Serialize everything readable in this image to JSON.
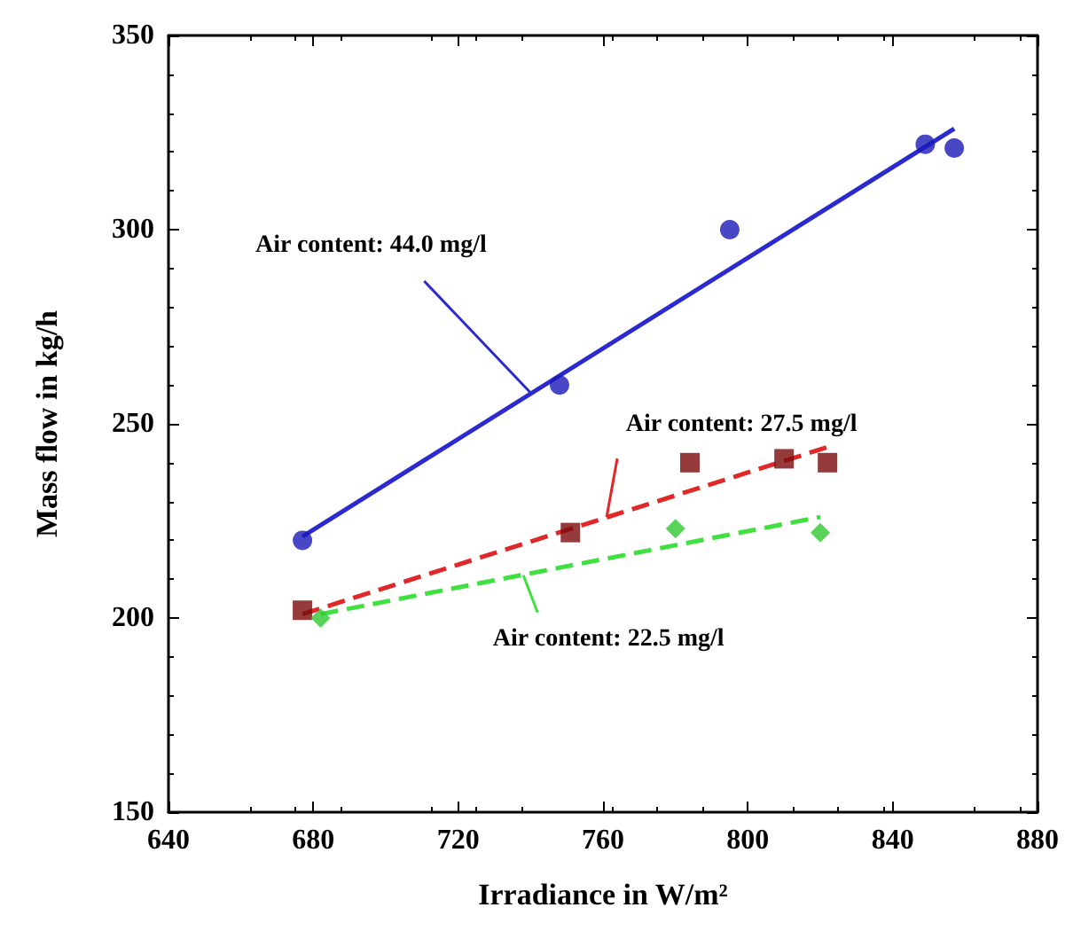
{
  "chart_data": {
    "type": "scatter",
    "xlabel": "Irradiance in W/m²",
    "ylabel": "Mass flow in kg/h",
    "xlim": [
      640,
      880
    ],
    "xticks": [
      640,
      680,
      720,
      760,
      800,
      840,
      880
    ],
    "ylim": [
      150,
      350
    ],
    "yticks": [
      150,
      200,
      250,
      300,
      350
    ],
    "grid": false,
    "series": [
      {
        "color": "#1a1ab8",
        "marker": "circle",
        "x": [
          677,
          748,
          795,
          849,
          857
        ],
        "values": [
          220,
          260,
          300,
          322,
          321
        ]
      },
      {
        "color": "#7a0a0a",
        "marker": "square",
        "x": [
          677,
          751,
          784,
          810,
          822
        ],
        "values": [
          202,
          222,
          240,
          241,
          240
        ]
      },
      {
        "color": "#30c830",
        "marker": "diamond",
        "x": [
          682,
          780,
          820
        ],
        "values": [
          200,
          223,
          222
        ]
      },
      {
        "type": "line",
        "color": "#2a2ad0",
        "line_style": "solid",
        "marker": "none",
        "x": [
          677,
          857
        ],
        "values": [
          221,
          326
        ]
      },
      {
        "type": "line",
        "color": "#e02828",
        "line_style": "dashed",
        "marker": "none",
        "x": [
          677,
          822
        ],
        "values": [
          201,
          244
        ]
      },
      {
        "type": "line",
        "color": "#40e040",
        "line_style": "dashed",
        "marker": "none",
        "x": [
          682,
          820
        ],
        "values": [
          201,
          226
        ]
      }
    ],
    "annotations": [
      {
        "text": "Air content: 44.0 mg/l",
        "x": 740,
        "y": 258
      },
      {
        "text": "Air content: 27.5 mg/l",
        "x": 761,
        "y": 226
      },
      {
        "text": "Air content: 22.5 mg/l",
        "x": 738,
        "y": 211
      }
    ]
  }
}
